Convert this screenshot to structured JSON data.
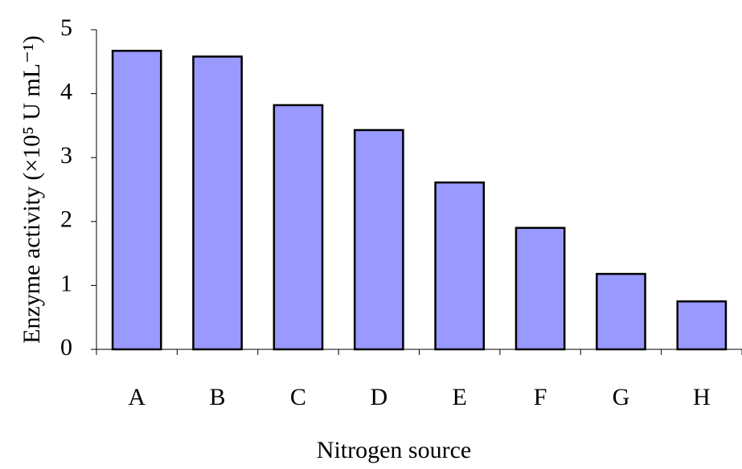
{
  "chart_data": {
    "type": "bar",
    "x_label": "Nitrogen source",
    "y_label": "Enzyme activity (×10⁵ U mL⁻¹)",
    "categories": [
      "A",
      "B",
      "C",
      "D",
      "E",
      "F",
      "G",
      "H"
    ],
    "values": [
      4.67,
      4.58,
      3.82,
      3.43,
      2.61,
      1.9,
      1.18,
      0.75
    ],
    "color": "#9999ff",
    "ylim": [
      0,
      5
    ],
    "yticks": [
      0,
      1,
      2,
      3,
      4,
      5
    ],
    "grid": false
  }
}
